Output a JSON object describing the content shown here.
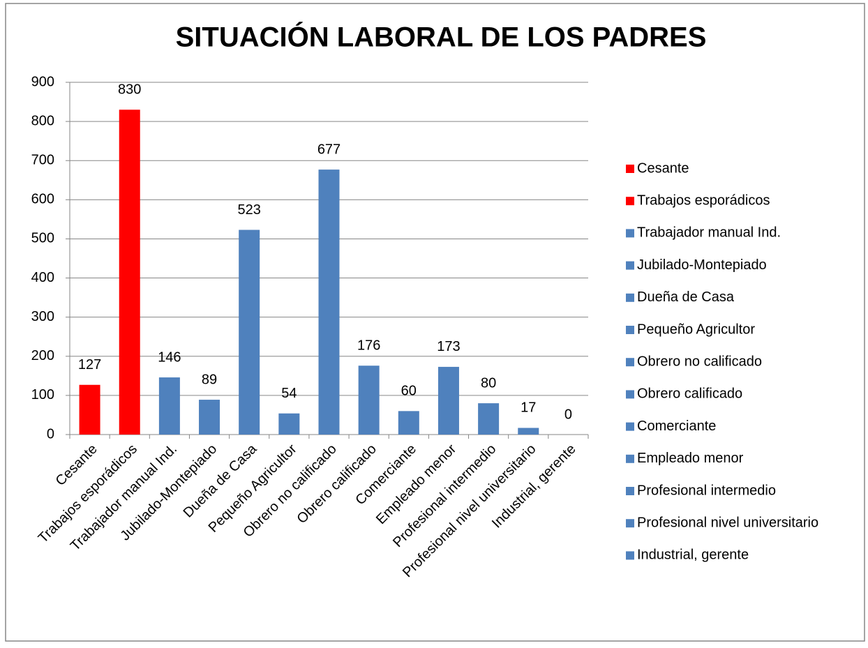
{
  "chart_data": {
    "type": "bar",
    "title": "SITUACIÓN LABORAL DE LOS PADRES",
    "categories": [
      "Cesante",
      "Trabajos esporádicos",
      "Trabajador manual Ind.",
      "Jubilado-Montepiado",
      "Dueña de Casa",
      "Pequeño Agricultor",
      "Obrero no calificado",
      "Obrero calificado",
      "Comerciante",
      "Empleado menor",
      "Profesional intermedio",
      "Profesional nivel universitario",
      "Industrial, gerente"
    ],
    "values": [
      127,
      830,
      146,
      89,
      523,
      54,
      677,
      176,
      60,
      173,
      80,
      17,
      0
    ],
    "colors": [
      "#ff0000",
      "#ff0000",
      "#4f81bd",
      "#4f81bd",
      "#4f81bd",
      "#4f81bd",
      "#4f81bd",
      "#4f81bd",
      "#4f81bd",
      "#4f81bd",
      "#4f81bd",
      "#4f81bd",
      "#4f81bd"
    ],
    "ylim": [
      0,
      900
    ],
    "yticks": [
      0,
      100,
      200,
      300,
      400,
      500,
      600,
      700,
      800,
      900
    ],
    "grid": true,
    "legend": "right"
  }
}
